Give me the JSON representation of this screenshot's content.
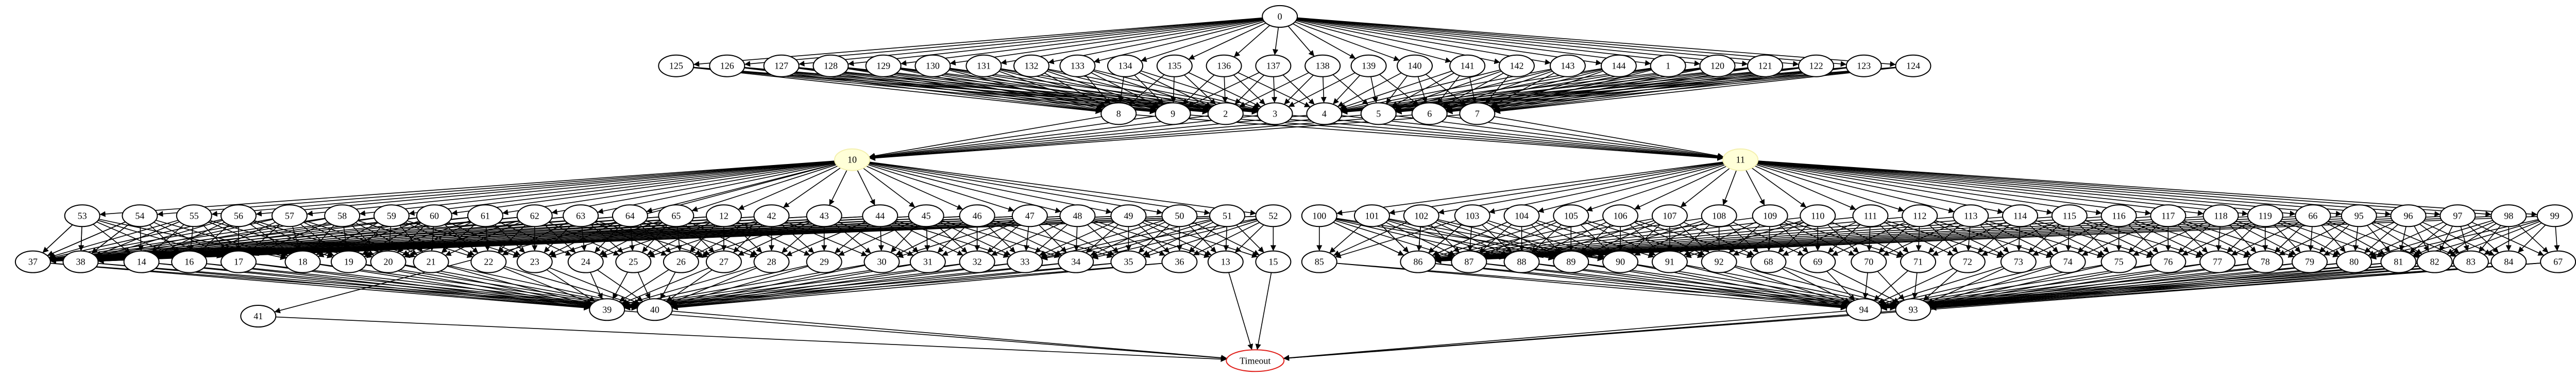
{
  "nodes": [
    "0",
    "125",
    "126",
    "127",
    "128",
    "129",
    "130",
    "131",
    "132",
    "133",
    "134",
    "135",
    "136",
    "137",
    "138",
    "139",
    "140",
    "141",
    "142",
    "143",
    "144",
    "1",
    "120",
    "121",
    "122",
    "123",
    "124",
    "8",
    "9",
    "2",
    "3",
    "4",
    "5",
    "6",
    "7",
    "10",
    "11",
    "53",
    "54",
    "55",
    "56",
    "57",
    "58",
    "59",
    "60",
    "61",
    "62",
    "63",
    "64",
    "65",
    "12",
    "42",
    "43",
    "44",
    "45",
    "46",
    "47",
    "48",
    "49",
    "50",
    "51",
    "52",
    "37",
    "38",
    "14",
    "16",
    "17",
    "18",
    "19",
    "20",
    "21",
    "22",
    "23",
    "24",
    "25",
    "26",
    "27",
    "28",
    "29",
    "30",
    "31",
    "32",
    "33",
    "34",
    "35",
    "36",
    "13",
    "15",
    "39",
    "40",
    "41",
    "Timeout",
    "100",
    "101",
    "102",
    "103",
    "104",
    "105",
    "106",
    "107",
    "108",
    "109",
    "110",
    "111",
    "112",
    "113",
    "114",
    "115",
    "116",
    "117",
    "118",
    "119",
    "66",
    "95",
    "96",
    "97",
    "98",
    "99",
    "85",
    "86",
    "87",
    "88",
    "89",
    "90",
    "91",
    "92",
    "68",
    "69",
    "70",
    "71",
    "72",
    "73",
    "74",
    "75",
    "76",
    "77",
    "78",
    "79",
    "80",
    "81",
    "82",
    "83",
    "84",
    "67",
    "94",
    "93"
  ]
}
